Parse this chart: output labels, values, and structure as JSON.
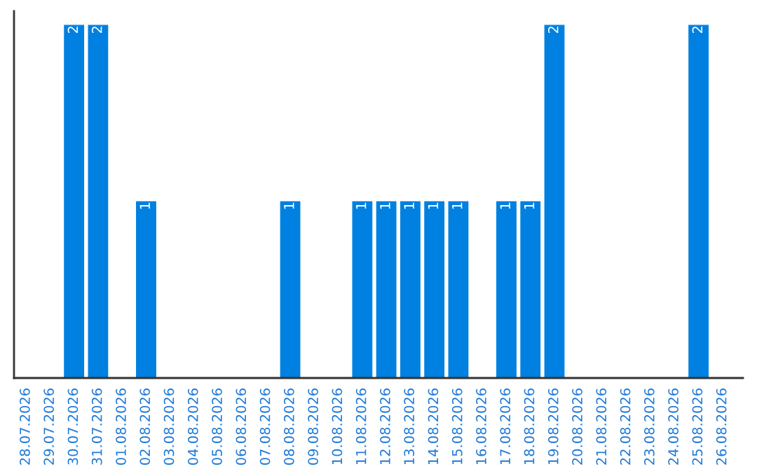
{
  "chart_data": {
    "type": "bar",
    "categories": [
      "28.07.2026",
      "29.07.2026",
      "30.07.2026",
      "31.07.2026",
      "01.08.2026",
      "02.08.2026",
      "03.08.2026",
      "04.08.2026",
      "05.08.2026",
      "06.08.2026",
      "07.08.2026",
      "08.08.2026",
      "09.08.2026",
      "10.08.2026",
      "11.08.2026",
      "12.08.2026",
      "13.08.2026",
      "14.08.2026",
      "15.08.2026",
      "16.08.2026",
      "17.08.2026",
      "18.08.2026",
      "19.08.2026",
      "20.08.2026",
      "21.08.2026",
      "22.08.2026",
      "23.08.2026",
      "24.08.2026",
      "25.08.2026",
      "26.08.2026"
    ],
    "values": [
      0,
      0,
      2,
      2,
      0,
      1,
      0,
      0,
      0,
      0,
      0,
      1,
      0,
      0,
      1,
      1,
      1,
      1,
      1,
      0,
      1,
      1,
      2,
      0,
      0,
      0,
      0,
      0,
      2,
      0
    ],
    "value_labels": [
      null,
      null,
      "2",
      "2",
      null,
      "1",
      null,
      null,
      null,
      null,
      null,
      "1",
      null,
      null,
      "1",
      "1",
      "1",
      "1",
      "1",
      null,
      "1",
      "1",
      "2",
      null,
      null,
      null,
      null,
      null,
      "2",
      null
    ],
    "color": "#0080e0",
    "tick_labels": "x",
    "grid": false,
    "legend": false
  }
}
